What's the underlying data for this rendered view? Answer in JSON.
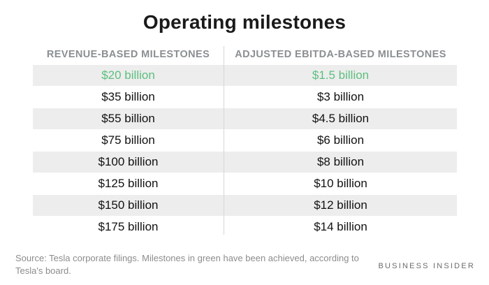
{
  "title": "Operating milestones",
  "chart_data": {
    "type": "table",
    "title": "Operating milestones",
    "columns": [
      "REVENUE-BASED MILESTONES",
      "ADJUSTED EBITDA-BASED MILESTONES"
    ],
    "rows": [
      {
        "revenue": "$20 billion",
        "ebitda": "$1.5 billion",
        "achieved": true
      },
      {
        "revenue": "$35 billion",
        "ebitda": "$3 billion",
        "achieved": false
      },
      {
        "revenue": "$55 billion",
        "ebitda": "$4.5 billion",
        "achieved": false
      },
      {
        "revenue": "$75 billion",
        "ebitda": "$6 billion",
        "achieved": false
      },
      {
        "revenue": "$100 billion",
        "ebitda": "$8 billion",
        "achieved": false
      },
      {
        "revenue": "$125 billion",
        "ebitda": "$10 billion",
        "achieved": false
      },
      {
        "revenue": "$150 billion",
        "ebitda": "$12 billion",
        "achieved": false
      },
      {
        "revenue": "$175 billion",
        "ebitda": "$14 billion",
        "achieved": false
      }
    ]
  },
  "source_note": "Source: Tesla corporate filings. Milestones in green have been achieved, according to Tesla's board.",
  "brand": "BUSINESS INSIDER",
  "colors": {
    "achieved": "#5cbf7e",
    "normal": "#111111",
    "header": "#8b8f92",
    "shade": "#ededed"
  }
}
